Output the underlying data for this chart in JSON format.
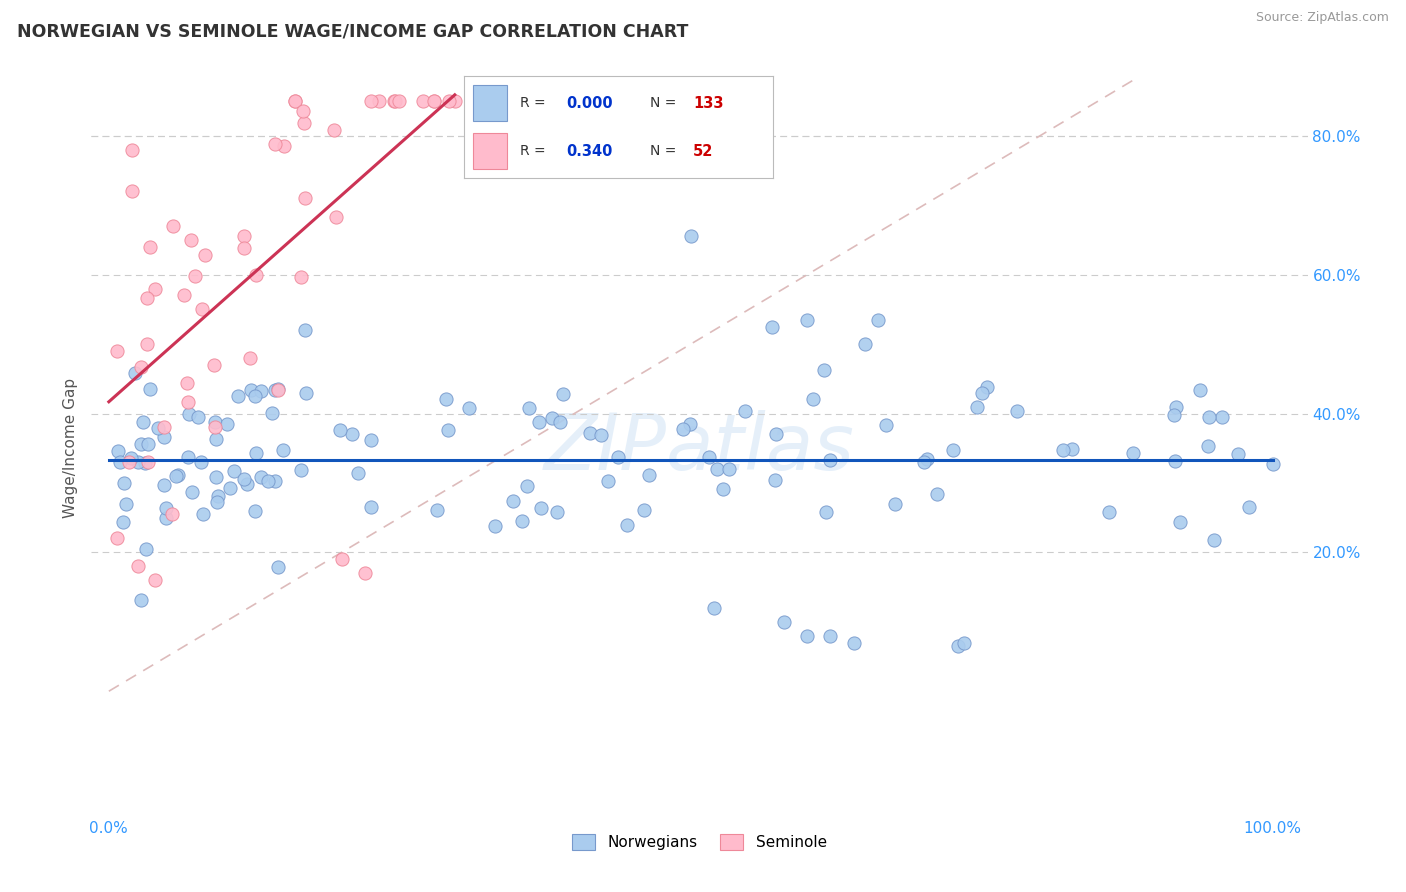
{
  "title": "NORWEGIAN VS SEMINOLE WAGE/INCOME GAP CORRELATION CHART",
  "source_text": "Source: ZipAtlas.com",
  "ylabel": "Wage/Income Gap",
  "watermark": "ZIPatlas",
  "legend_r_blue": "0.000",
  "legend_n_blue": "133",
  "legend_r_pink": "0.340",
  "legend_n_pink": "52",
  "legend_label_blue": "Norwegians",
  "legend_label_pink": "Seminole",
  "blue_scatter_face": "#AACCEE",
  "blue_scatter_edge": "#7799CC",
  "pink_scatter_face": "#FFBBCC",
  "pink_scatter_edge": "#EE8899",
  "trend_blue_color": "#1155BB",
  "trend_pink_color": "#CC3355",
  "diagonal_color": "#DDAAAA",
  "grid_color": "#CCCCCC",
  "title_color": "#333333",
  "axis_tick_color": "#3399FF",
  "source_color": "#999999",
  "ylabel_color": "#555555",
  "legend_text_color": "#333333",
  "legend_r_color": "#0033CC",
  "legend_n_color": "#CC0000",
  "watermark_color": "#AACCEE"
}
